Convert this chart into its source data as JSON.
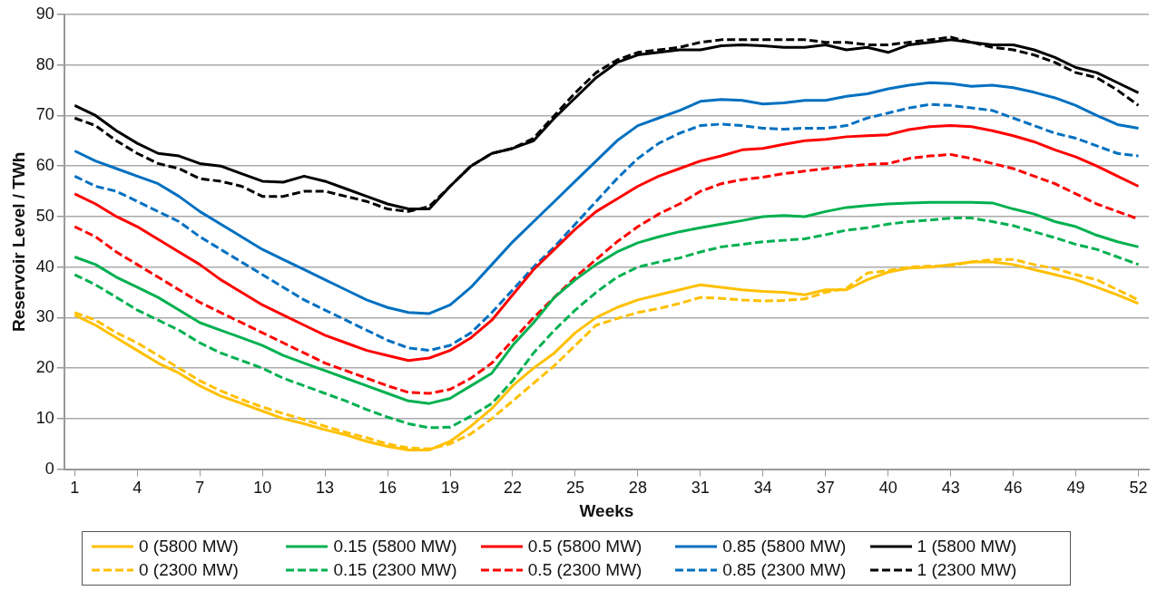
{
  "chart_data": {
    "type": "line",
    "xlabel": "Weeks",
    "ylabel": "Reservoir Level / TWh",
    "x": [
      1,
      2,
      3,
      4,
      5,
      6,
      7,
      8,
      9,
      10,
      11,
      12,
      13,
      14,
      15,
      16,
      17,
      18,
      19,
      20,
      21,
      22,
      23,
      24,
      25,
      26,
      27,
      28,
      29,
      30,
      31,
      32,
      33,
      34,
      35,
      36,
      37,
      38,
      39,
      40,
      41,
      42,
      43,
      44,
      45,
      46,
      47,
      48,
      49,
      50,
      51,
      52
    ],
    "xlim": [
      0.5,
      52.5
    ],
    "xticks": [
      1,
      4,
      7,
      10,
      13,
      16,
      19,
      22,
      25,
      28,
      31,
      34,
      37,
      40,
      43,
      46,
      49,
      52
    ],
    "ylim": [
      0,
      90
    ],
    "yticks": [
      0,
      10,
      20,
      30,
      40,
      50,
      60,
      70,
      80,
      90
    ],
    "grid": "y",
    "legend": "bottom",
    "marker": "none",
    "series": [
      {
        "name": "0 (5800 MW)",
        "color": "#ffc000",
        "line_style": "solid",
        "values": [
          30.5,
          28.5,
          26,
          23.5,
          21,
          19,
          16.5,
          14.5,
          13,
          11.5,
          10,
          9,
          7.8,
          6.8,
          5.5,
          4.5,
          3.8,
          3.8,
          5.5,
          8.5,
          12,
          16.5,
          20,
          23,
          27,
          30,
          32,
          33.5,
          34.5,
          35.5,
          36.5,
          36,
          35.5,
          35.2,
          35,
          34.5,
          35.5,
          35.5,
          37.5,
          39,
          39.8,
          40,
          40.5,
          41,
          41,
          40.5,
          39.5,
          38.5,
          37.5,
          36,
          34.5,
          32.8
        ]
      },
      {
        "name": "0.15 (5800 MW)",
        "color": "#00b050",
        "line_style": "solid",
        "values": [
          42,
          40.5,
          38,
          36,
          34,
          31.5,
          29,
          27.5,
          26,
          24.5,
          22.5,
          21,
          19.5,
          18,
          16.5,
          15,
          13.5,
          13,
          14,
          16.5,
          19,
          24.5,
          29,
          34,
          37.5,
          40.5,
          43,
          44.8,
          46,
          47,
          47.8,
          48.5,
          49.2,
          50,
          50.2,
          50,
          51,
          51.8,
          52.2,
          52.5,
          52.7,
          52.8,
          52.8,
          52.8,
          52.7,
          51.5,
          50.5,
          49,
          48,
          46.3,
          45,
          44
        ]
      },
      {
        "name": "0.5 (5800 MW)",
        "color": "#ff0000",
        "line_style": "solid",
        "values": [
          54.5,
          52.5,
          50,
          48,
          45.5,
          43,
          40.5,
          37.5,
          35,
          32.5,
          30.5,
          28.5,
          26.5,
          25,
          23.5,
          22.5,
          21.5,
          22,
          23.5,
          26,
          29.5,
          34.5,
          39.5,
          43.5,
          47.5,
          51,
          53.5,
          56,
          58,
          59.5,
          61,
          62,
          63.2,
          63.5,
          64.3,
          65,
          65.3,
          65.8,
          66,
          66.2,
          67.2,
          67.8,
          68,
          67.8,
          67,
          66,
          64.8,
          63.2,
          61.8,
          60,
          58,
          56
        ]
      },
      {
        "name": "0.85 (5800 MW)",
        "color": "#0070c0",
        "line_style": "solid",
        "values": [
          63,
          61,
          59.5,
          58,
          56.5,
          54,
          51,
          48.5,
          46,
          43.5,
          41.5,
          39.5,
          37.5,
          35.5,
          33.5,
          32,
          31,
          30.8,
          32.5,
          36,
          40.5,
          45,
          49,
          53,
          57,
          61,
          65,
          68,
          69.5,
          71,
          72.8,
          73.2,
          73,
          72.3,
          72.5,
          73,
          73,
          73.8,
          74.3,
          75.3,
          76,
          76.5,
          76.3,
          75.8,
          76,
          75.5,
          74.6,
          73.5,
          72,
          70,
          68.2,
          67.5
        ]
      },
      {
        "name": "1 (5800 MW)",
        "color": "#000000",
        "line_style": "solid",
        "values": [
          72,
          70,
          67,
          64.5,
          62.5,
          62,
          60.5,
          60,
          58.5,
          57,
          56.8,
          58,
          57,
          55.5,
          54,
          52.5,
          51.5,
          51.5,
          56,
          60,
          62.5,
          63.5,
          65,
          69.5,
          73.5,
          77.5,
          80.5,
          82,
          82.5,
          83,
          83,
          83.8,
          84,
          83.8,
          83.5,
          83.5,
          84,
          83,
          83.5,
          82.5,
          84,
          84.5,
          85,
          84.5,
          84,
          84,
          83,
          81.5,
          79.5,
          78.5,
          76.5,
          74.5
        ]
      },
      {
        "name": "0 (2300 MW)",
        "color": "#ffc000",
        "line_style": "dashed",
        "values": [
          31,
          29.5,
          27,
          25,
          22.5,
          20,
          17.5,
          15.5,
          13.8,
          12.3,
          11,
          9.8,
          8.5,
          7.3,
          6.2,
          5,
          4.2,
          4,
          5,
          7,
          10,
          13.5,
          17,
          20.5,
          24.5,
          28.5,
          29.8,
          31,
          31.8,
          32.8,
          34,
          33.8,
          33.5,
          33.3,
          33.4,
          33.7,
          35,
          35.8,
          38.8,
          39.3,
          40,
          40.2,
          40.3,
          41,
          41.5,
          41.5,
          40.5,
          39.7,
          38.5,
          37.5,
          35.5,
          33.5
        ]
      },
      {
        "name": "0.15 (2300 MW)",
        "color": "#00b050",
        "line_style": "dashed",
        "values": [
          38.5,
          36.5,
          34,
          31.5,
          29.5,
          27.5,
          25,
          23,
          21.5,
          20,
          18,
          16.5,
          15,
          13.5,
          11.8,
          10.3,
          9,
          8.2,
          8.3,
          10.5,
          13,
          17.5,
          23,
          27.5,
          31.5,
          35,
          38,
          40,
          41,
          41.8,
          43,
          44,
          44.5,
          45,
          45.3,
          45.6,
          46.4,
          47.3,
          47.8,
          48.5,
          49,
          49.3,
          49.7,
          49.7,
          49,
          48.2,
          47,
          45.8,
          44.5,
          43.5,
          42,
          40.5
        ]
      },
      {
        "name": "0.5 (2300 MW)",
        "color": "#ff0000",
        "line_style": "dashed",
        "values": [
          48,
          46,
          43,
          40.5,
          38,
          35.5,
          33,
          31,
          29,
          27,
          25,
          23,
          21,
          19.5,
          18,
          16.5,
          15.2,
          15,
          15.8,
          18,
          21,
          25.5,
          30,
          34,
          38,
          41.5,
          45,
          48,
          50.5,
          52.5,
          55,
          56.5,
          57.3,
          57.8,
          58.5,
          59,
          59.5,
          60,
          60.3,
          60.5,
          61.5,
          62,
          62.3,
          61.5,
          60.5,
          59.5,
          58,
          56.5,
          54.5,
          52.5,
          51,
          49.5
        ]
      },
      {
        "name": "0.85 (2300 MW)",
        "color": "#0070c0",
        "line_style": "dashed",
        "values": [
          58,
          56,
          55,
          53,
          51,
          49,
          46,
          43.5,
          41,
          38.5,
          36,
          33.5,
          31.5,
          29.5,
          27.5,
          25.5,
          24,
          23.5,
          24.5,
          27,
          31,
          35.5,
          40,
          44,
          48.5,
          53,
          57.5,
          61.5,
          64.5,
          66.5,
          68,
          68.3,
          68,
          67.5,
          67.3,
          67.5,
          67.5,
          68,
          69.5,
          70.5,
          71.5,
          72.2,
          72,
          71.5,
          71,
          69.5,
          68,
          66.5,
          65.5,
          64,
          62.5,
          62
        ]
      },
      {
        "name": "1 (2300 MW)",
        "color": "#000000",
        "line_style": "dashed",
        "values": [
          69.5,
          68,
          65,
          62.5,
          60.5,
          59.5,
          57.5,
          57,
          56,
          54,
          54,
          55,
          55,
          54,
          53,
          51.5,
          51,
          52,
          56,
          60,
          62.5,
          63.5,
          65.5,
          70,
          74.5,
          78.5,
          81,
          82.5,
          83,
          83.5,
          84.5,
          85,
          85,
          85,
          85,
          85,
          84.5,
          84.5,
          84,
          84,
          84.5,
          85,
          85.5,
          84.5,
          83.5,
          83,
          82,
          80.5,
          78.5,
          77.5,
          75,
          72
        ]
      }
    ]
  }
}
